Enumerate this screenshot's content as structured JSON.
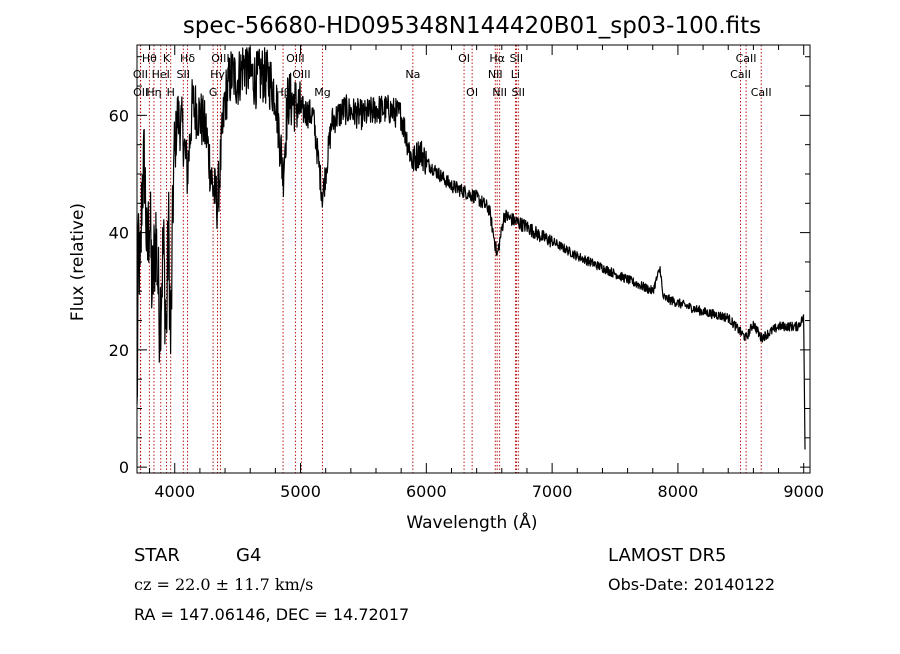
{
  "chart_data": {
    "type": "line",
    "title": "spec-56680-HD095348N144420B01_sp03-100.fits",
    "xlabel": "Wavelength (Å)",
    "ylabel": "Flux (relative)",
    "xlim": [
      3700,
      9050
    ],
    "ylim": [
      -1,
      72
    ],
    "xticks": [
      4000,
      5000,
      6000,
      7000,
      8000,
      9000
    ],
    "yticks": [
      0,
      20,
      40,
      60
    ],
    "grid": false,
    "line_color": "#000000",
    "marker_color": "#b00000",
    "spectrum_anchor_points": [
      [
        3700,
        8
      ],
      [
        3712,
        40
      ],
      [
        3725,
        30
      ],
      [
        3740,
        48
      ],
      [
        3760,
        52
      ],
      [
        3780,
        35
      ],
      [
        3800,
        44
      ],
      [
        3820,
        30
      ],
      [
        3850,
        40
      ],
      [
        3880,
        25
      ],
      [
        3910,
        38
      ],
      [
        3933,
        22
      ],
      [
        3950,
        42
      ],
      [
        3968,
        20
      ],
      [
        3990,
        50
      ],
      [
        4020,
        60
      ],
      [
        4060,
        58
      ],
      [
        4101,
        50
      ],
      [
        4140,
        62
      ],
      [
        4200,
        60
      ],
      [
        4250,
        57
      ],
      [
        4300,
        48
      ],
      [
        4340,
        45
      ],
      [
        4400,
        63
      ],
      [
        4450,
        67
      ],
      [
        4500,
        66
      ],
      [
        4550,
        69
      ],
      [
        4600,
        67
      ],
      [
        4650,
        66
      ],
      [
        4700,
        67
      ],
      [
        4750,
        66
      ],
      [
        4800,
        64
      ],
      [
        4861,
        50
      ],
      [
        4900,
        63
      ],
      [
        4950,
        62
      ],
      [
        5000,
        61
      ],
      [
        5100,
        60
      ],
      [
        5175,
        46
      ],
      [
        5250,
        59
      ],
      [
        5350,
        61
      ],
      [
        5500,
        60
      ],
      [
        5600,
        61
      ],
      [
        5700,
        61
      ],
      [
        5800,
        60
      ],
      [
        5890,
        52
      ],
      [
        5950,
        54
      ],
      [
        6000,
        52
      ],
      [
        6100,
        50
      ],
      [
        6200,
        48
      ],
      [
        6300,
        47
      ],
      [
        6400,
        46
      ],
      [
        6500,
        44
      ],
      [
        6563,
        36
      ],
      [
        6620,
        43
      ],
      [
        6700,
        42
      ],
      [
        6800,
        41
      ],
      [
        6900,
        39.5
      ],
      [
        7000,
        38.5
      ],
      [
        7200,
        36
      ],
      [
        7400,
        34
      ],
      [
        7600,
        32
      ],
      [
        7800,
        30
      ],
      [
        7860,
        34
      ],
      [
        7880,
        29
      ],
      [
        8000,
        28
      ],
      [
        8200,
        26.5
      ],
      [
        8400,
        25.5
      ],
      [
        8498,
        23
      ],
      [
        8542,
        22
      ],
      [
        8600,
        24.5
      ],
      [
        8662,
        22
      ],
      [
        8800,
        24
      ],
      [
        8950,
        24
      ],
      [
        9000,
        25.5
      ],
      [
        9010,
        3
      ]
    ],
    "spectral_lines": [
      {
        "name": "Hθ",
        "wavelength": 3798,
        "row": 1
      },
      {
        "name": "OII",
        "wavelength": 3727,
        "row": 2
      },
      {
        "name": "OII",
        "wavelength": 3729,
        "row": 3
      },
      {
        "name": "Hη",
        "wavelength": 3835,
        "row": 3
      },
      {
        "name": "HeI",
        "wavelength": 3889,
        "row": 2
      },
      {
        "name": "K",
        "wavelength": 3934,
        "row": 1
      },
      {
        "name": "H",
        "wavelength": 3968,
        "row": 3
      },
      {
        "name": "Hδ",
        "wavelength": 4102,
        "row": 1
      },
      {
        "name": "SII",
        "wavelength": 4068,
        "row": 2
      },
      {
        "name": "OIII",
        "wavelength": 4363,
        "row": 1
      },
      {
        "name": "Hγ",
        "wavelength": 4340,
        "row": 2
      },
      {
        "name": "G",
        "wavelength": 4305,
        "row": 3
      },
      {
        "name": "OIII",
        "wavelength": 4959,
        "row": 1
      },
      {
        "name": "OIII",
        "wavelength": 5007,
        "row": 2
      },
      {
        "name": "Hβ",
        "wavelength": 4861,
        "row": 3
      },
      {
        "name": "Mg",
        "wavelength": 5175,
        "row": 3
      },
      {
        "name": "Na",
        "wavelength": 5893,
        "row": 2
      },
      {
        "name": "OI",
        "wavelength": 6300,
        "row": 1
      },
      {
        "name": "OI",
        "wavelength": 6364,
        "row": 3
      },
      {
        "name": "Hα",
        "wavelength": 6563,
        "row": 1
      },
      {
        "name": "NII",
        "wavelength": 6548,
        "row": 2
      },
      {
        "name": "NII",
        "wavelength": 6583,
        "row": 3
      },
      {
        "name": "SII",
        "wavelength": 6716,
        "row": 1
      },
      {
        "name": "Li",
        "wavelength": 6708,
        "row": 2
      },
      {
        "name": "SII",
        "wavelength": 6731,
        "row": 3
      },
      {
        "name": "CaII",
        "wavelength": 8542,
        "row": 1
      },
      {
        "name": "CaII",
        "wavelength": 8498,
        "row": 2
      },
      {
        "name": "CaII",
        "wavelength": 8662,
        "row": 3
      }
    ]
  },
  "info": {
    "class": "STAR",
    "subclass": "G4",
    "release": "LAMOST DR5",
    "cz": "cz = 22.0 ± 11.7 km/s",
    "obs_date": "Obs-Date: 20140122",
    "radec": "RA = 147.06146, DEC =  14.72017"
  }
}
